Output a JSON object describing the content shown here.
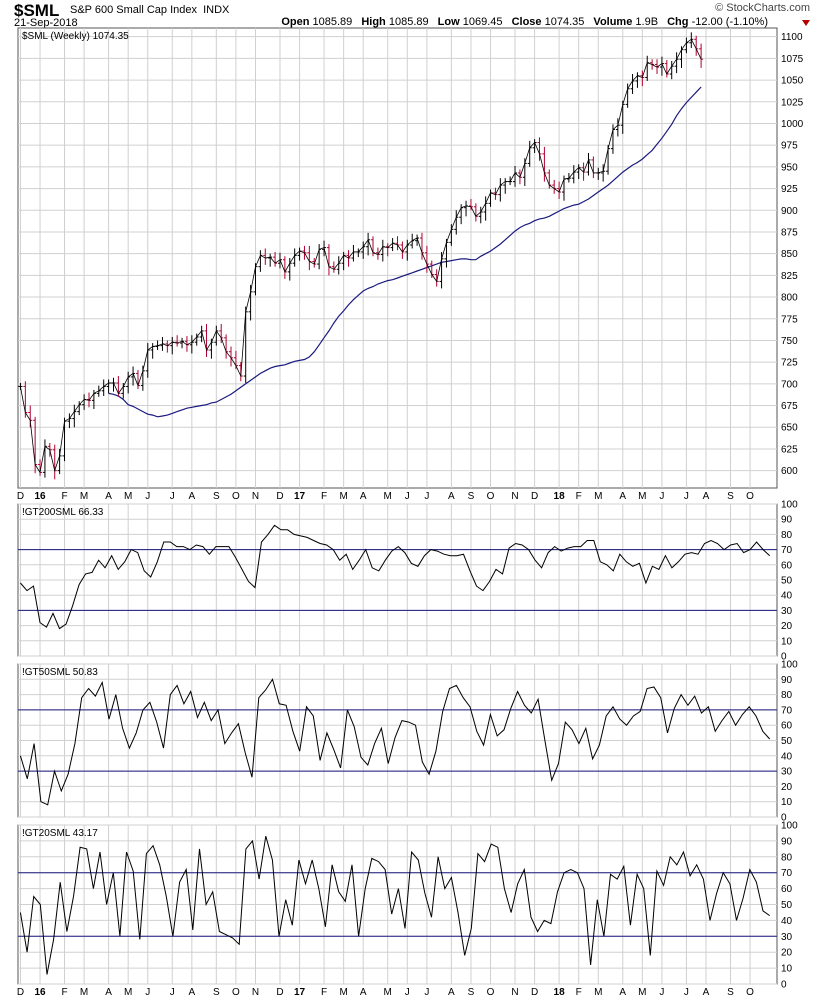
{
  "header": {
    "symbol": "$SML",
    "name": "S&P 600 Small Cap Index",
    "exchange": "INDX",
    "date": "21-Sep-2018",
    "brand": "© StockCharts.com",
    "open_label": "Open",
    "open": "1085.89",
    "high_label": "High",
    "high": "1085.89",
    "low_label": "Low",
    "low": "1069.45",
    "close_label": "Close",
    "close": "1074.35",
    "volume_label": "Volume",
    "volume": "1.9B",
    "chg_label": "Chg",
    "chg": "-12.00 (-1.10%)"
  },
  "colors": {
    "up": "#000000",
    "down": "#b00030",
    "ma": "#1a1a80",
    "line": "#000000",
    "grid": "#d0d0d0",
    "ref": "#1a1a80",
    "negative": "#b00000"
  },
  "x_axis": {
    "tick_labels": [
      "D",
      "16",
      "F",
      "M",
      "A",
      "M",
      "J",
      "J",
      "A",
      "S",
      "O",
      "N",
      "D",
      "17",
      "F",
      "M",
      "A",
      "M",
      "J",
      "J",
      "A",
      "S",
      "O",
      "N",
      "D",
      "18",
      "F",
      "M",
      "A",
      "M",
      "J",
      "J",
      "A",
      "S",
      "O"
    ],
    "tick_weeks": [
      0,
      4,
      9,
      13,
      18,
      22,
      26,
      31,
      35,
      40,
      44,
      48,
      53,
      57,
      62,
      66,
      70,
      75,
      79,
      83,
      88,
      92,
      96,
      101,
      105,
      110,
      114,
      118,
      123,
      127,
      131,
      136,
      140,
      145,
      149
    ],
    "bold_labels": [
      "16",
      "17",
      "18"
    ]
  },
  "chart_data": [
    {
      "type": "ohlc",
      "panel": "price",
      "label": "$SML (Weekly) 1074.35",
      "frequency": "weekly",
      "ylim": [
        580,
        1110
      ],
      "yticks": [
        600,
        625,
        650,
        675,
        700,
        725,
        750,
        775,
        800,
        825,
        850,
        875,
        900,
        925,
        950,
        975,
        1000,
        1025,
        1050,
        1075,
        1100
      ],
      "close": [
        697,
        667,
        658,
        607,
        598,
        628,
        624,
        600,
        617,
        657,
        660,
        668,
        676,
        682,
        681,
        689,
        692,
        697,
        701,
        701,
        689,
        697,
        708,
        712,
        698,
        715,
        739,
        743,
        744,
        746,
        744,
        748,
        747,
        749,
        745,
        748,
        754,
        761,
        739,
        748,
        761,
        753,
        737,
        730,
        721,
        709,
        783,
        806,
        835,
        848,
        845,
        846,
        839,
        843,
        829,
        839,
        848,
        853,
        851,
        841,
        838,
        855,
        857,
        835,
        832,
        839,
        848,
        845,
        852,
        852,
        858,
        866,
        851,
        849,
        858,
        857,
        862,
        860,
        852,
        860,
        865,
        868,
        851,
        838,
        826,
        818,
        844,
        863,
        878,
        892,
        903,
        905,
        904,
        893,
        898,
        908,
        920,
        918,
        929,
        933,
        933,
        943,
        938,
        954,
        972,
        978,
        965,
        943,
        929,
        925,
        921,
        936,
        937,
        944,
        949,
        944,
        958,
        943,
        943,
        945,
        971,
        993,
        998,
        1022,
        1040,
        1049,
        1055,
        1053,
        1070,
        1068,
        1065,
        1069,
        1057,
        1066,
        1074,
        1085,
        1093,
        1097,
        1086,
        1074
      ],
      "moving_average": {
        "period": 40,
        "values": [
          689,
          688,
          686,
          682,
          676,
          674,
          671,
          668,
          665,
          664,
          662,
          663,
          664,
          666,
          668,
          670,
          672,
          673,
          674,
          675,
          676,
          678,
          679,
          682,
          685,
          688,
          692,
          696,
          700,
          704,
          708,
          712,
          715,
          718,
          720,
          721,
          722,
          724,
          726,
          727,
          728,
          731,
          737,
          745,
          753,
          761,
          770,
          778,
          784,
          791,
          797,
          802,
          807,
          810,
          812,
          815,
          817,
          819,
          820,
          822,
          824,
          826,
          828,
          830,
          832,
          834,
          836,
          838,
          840,
          841,
          842,
          843,
          844,
          844,
          843,
          843,
          847,
          850,
          853,
          857,
          861,
          866,
          871,
          876,
          880,
          883,
          885,
          888,
          890,
          891,
          893,
          896,
          899,
          902,
          904,
          906,
          907,
          910,
          913,
          917,
          921,
          925,
          929,
          934,
          939,
          944,
          948,
          952,
          955,
          959,
          964,
          969,
          976,
          983,
          991,
          999,
          1009,
          1017,
          1024,
          1030,
          1036,
          1042
        ]
      }
    },
    {
      "type": "line",
      "panel": "indicator",
      "label": "!GT200SML 66.33",
      "ylim": [
        0,
        100
      ],
      "yticks": [
        0,
        10,
        20,
        30,
        40,
        50,
        60,
        70,
        80,
        90,
        100
      ],
      "ref_lines": [
        30,
        70
      ],
      "values": [
        48,
        43,
        46,
        22,
        19,
        28,
        18,
        21,
        33,
        47,
        54,
        55,
        63,
        58,
        66,
        57,
        62,
        70,
        68,
        56,
        52,
        62,
        75,
        75,
        72,
        72,
        70,
        73,
        72,
        67,
        72,
        72,
        72,
        65,
        57,
        49,
        45,
        75,
        80,
        86,
        83,
        83,
        80,
        79,
        78,
        76,
        74,
        73,
        70,
        63,
        67,
        57,
        63,
        70,
        58,
        56,
        63,
        69,
        72,
        68,
        61,
        59,
        66,
        70,
        69,
        67,
        66,
        66,
        67,
        56,
        46,
        43,
        49,
        57,
        54,
        71,
        74,
        73,
        70,
        63,
        58,
        68,
        72,
        69,
        71,
        72,
        72,
        76,
        76,
        62,
        60,
        56,
        67,
        62,
        59,
        61,
        48,
        59,
        57,
        66,
        58,
        62,
        67,
        68,
        67,
        74,
        76,
        74,
        70,
        73,
        74,
        68,
        70,
        75,
        70,
        66
      ],
      "last": 66.33
    },
    {
      "type": "line",
      "panel": "indicator",
      "label": "!GT50SML 50.83",
      "ylim": [
        0,
        100
      ],
      "yticks": [
        0,
        10,
        20,
        30,
        40,
        50,
        60,
        70,
        80,
        90,
        100
      ],
      "ref_lines": [
        30,
        70
      ],
      "values": [
        40,
        25,
        48,
        10,
        8,
        30,
        17,
        28,
        48,
        78,
        84,
        79,
        88,
        64,
        80,
        58,
        45,
        55,
        70,
        75,
        62,
        45,
        80,
        86,
        74,
        82,
        65,
        75,
        63,
        70,
        48,
        55,
        61,
        42,
        26,
        78,
        83,
        90,
        74,
        73,
        56,
        43,
        72,
        66,
        37,
        55,
        44,
        32,
        70,
        59,
        39,
        34,
        48,
        58,
        35,
        52,
        63,
        62,
        60,
        36,
        28,
        43,
        69,
        84,
        86,
        78,
        72,
        56,
        47,
        67,
        53,
        57,
        71,
        82,
        73,
        68,
        77,
        50,
        24,
        35,
        62,
        57,
        48,
        58,
        38,
        47,
        66,
        72,
        64,
        60,
        66,
        69,
        84,
        85,
        78,
        55,
        71,
        80,
        73,
        79,
        68,
        72,
        56,
        63,
        69,
        60,
        67,
        72,
        66,
        56,
        51
      ],
      "last": 50.83
    },
    {
      "type": "line",
      "panel": "indicator",
      "label": "!GT20SML 43.17",
      "ylim": [
        0,
        100
      ],
      "yticks": [
        0,
        10,
        20,
        30,
        40,
        50,
        60,
        70,
        80,
        90,
        100
      ],
      "ref_lines": [
        30,
        70
      ],
      "values": [
        45,
        20,
        55,
        50,
        6,
        28,
        64,
        33,
        55,
        86,
        85,
        60,
        83,
        50,
        70,
        30,
        83,
        71,
        28,
        82,
        87,
        75,
        55,
        30,
        64,
        72,
        34,
        85,
        50,
        58,
        33,
        31,
        29,
        25,
        85,
        90,
        66,
        93,
        78,
        30,
        53,
        37,
        78,
        63,
        78,
        60,
        36,
        75,
        58,
        52,
        75,
        30,
        60,
        79,
        77,
        72,
        44,
        60,
        35,
        83,
        78,
        57,
        42,
        80,
        60,
        67,
        45,
        18,
        35,
        82,
        77,
        88,
        86,
        60,
        45,
        63,
        72,
        42,
        33,
        40,
        38,
        58,
        70,
        72,
        70,
        60,
        12,
        53,
        30,
        69,
        66,
        74,
        37,
        69,
        60,
        18,
        71,
        62,
        80,
        75,
        83,
        68,
        75,
        66,
        40,
        57,
        70,
        63,
        40,
        54,
        72,
        64,
        46,
        43
      ],
      "last": 43.17
    }
  ]
}
